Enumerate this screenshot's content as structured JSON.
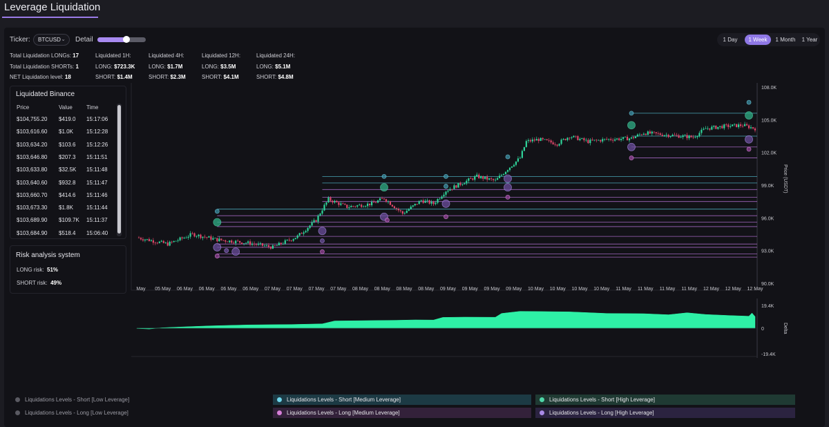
{
  "app": {
    "title": "Leverage Liquidation"
  },
  "controls": {
    "ticker_label": "Ticker:",
    "ticker_value": "BTCUSD",
    "detail_label": "Detail",
    "detail_level": 0.6,
    "ranges": [
      "1 Day",
      "1 Week",
      "1 Month",
      "1 Year"
    ],
    "active_range": "1 Week"
  },
  "stats": {
    "total_longs_label": "Total Liquidation LONGs:",
    "total_longs": "17",
    "total_shorts_label": "Total Liquidation SHORTs:",
    "total_shorts": "1",
    "net_label": "NET Liquidation level:",
    "net": "18",
    "windows": [
      {
        "title": "Liquidated 1H:",
        "long_label": "LONG:",
        "long": "$723.3K",
        "short_label": "SHORT:",
        "short": "$1.4M"
      },
      {
        "title": "Liquidated 4H:",
        "long_label": "LONG:",
        "long": "$1.7M",
        "short_label": "SHORT:",
        "short": "$2.3M"
      },
      {
        "title": "Liquidated 12H:",
        "long_label": "LONG:",
        "long": "$3.5M",
        "short_label": "SHORT:",
        "short": "$4.1M"
      },
      {
        "title": "Liquidated 24H:",
        "long_label": "LONG:",
        "long": "$5.1M",
        "short_label": "SHORT:",
        "short": "$4.8M"
      }
    ]
  },
  "binance": {
    "title": "Liquidated Binance",
    "headers": [
      "Price",
      "Value",
      "Time"
    ],
    "rows": [
      [
        "$104,755.20",
        "$419.0",
        "15:17:06"
      ],
      [
        "$103,616.60",
        "$1.0K",
        "15:12:28"
      ],
      [
        "$103,634.20",
        "$103.6",
        "15:12:26"
      ],
      [
        "$103,646.80",
        "$207.3",
        "15:11:51"
      ],
      [
        "$103,633.80",
        "$32.5K",
        "15:11:48"
      ],
      [
        "$103,640.60",
        "$932.8",
        "15:11:47"
      ],
      [
        "$103,660.70",
        "$414.6",
        "15:11:46"
      ],
      [
        "$103,673.30",
        "$1.8K",
        "15:11:44"
      ],
      [
        "$103,689.90",
        "$109.7K",
        "15:11:37"
      ],
      [
        "$103,684.90",
        "$518.4",
        "15:06:40"
      ]
    ]
  },
  "risk": {
    "title": "Risk analysis system",
    "long_label": "LONG risk:",
    "long": "51%",
    "short_label": "SHORT risk:",
    "short": "49%"
  },
  "legend": [
    {
      "label": "Liquidations Levels - Short [Low Leverage]",
      "color": "#5a5a62",
      "style": "plain"
    },
    {
      "label": "Liquidations Levels - Short [Medium Leverage]",
      "color": "#6fd3e8",
      "style": "pill-teal"
    },
    {
      "label": "Liquidations Levels - Short [High Leverage]",
      "color": "#4fd6a8",
      "style": "pill-green"
    },
    {
      "label": "Liquidations Levels - Long [Low Leverage]",
      "color": "#5a5a62",
      "style": "plain"
    },
    {
      "label": "Liquidations Levels - Long [Medium Leverage]",
      "color": "#d77fd9",
      "style": "pill-pink"
    },
    {
      "label": "Liquidations Levels - Long [High Leverage]",
      "color": "#a98ae6",
      "style": "pill-purple"
    }
  ],
  "colors": {
    "accent": "#9b7be8",
    "up": "#2fd49a",
    "down": "#e0476a",
    "delta": "#2ef0a6",
    "short_line": "#4fb7c9",
    "long_line": "#b06fd0"
  },
  "chart_data": [
    {
      "type": "candlestick",
      "y_label": "Price (USDT)",
      "y_ticks": [
        "108.0K",
        "105.0K",
        "102.0K",
        "99.0K",
        "96.0K",
        "93.0K",
        "90.0K"
      ],
      "ylim": [
        90000,
        108000
      ],
      "x_ticks": [
        "May",
        "05 May",
        "06 May",
        "06 May",
        "06 May",
        "06 May",
        "07 May",
        "07 May",
        "07 May",
        "07 May",
        "08 May",
        "08 May",
        "08 May",
        "08 May",
        "09 May",
        "09 May",
        "09 May",
        "09 May",
        "10 May",
        "10 May",
        "10 May",
        "10 May",
        "11 May",
        "11 May",
        "11 May",
        "11 May",
        "12 May",
        "12 May",
        "12 May"
      ],
      "price_path": [
        [
          0,
          94200
        ],
        [
          0.05,
          93600
        ],
        [
          0.09,
          94500
        ],
        [
          0.13,
          94000
        ],
        [
          0.18,
          93700
        ],
        [
          0.22,
          93300
        ],
        [
          0.26,
          94300
        ],
        [
          0.29,
          95800
        ],
        [
          0.3,
          96800
        ],
        [
          0.31,
          97700
        ],
        [
          0.34,
          97000
        ],
        [
          0.38,
          97300
        ],
        [
          0.4,
          97800
        ],
        [
          0.43,
          96400
        ],
        [
          0.46,
          97600
        ],
        [
          0.48,
          97300
        ],
        [
          0.5,
          98500
        ],
        [
          0.53,
          99300
        ],
        [
          0.55,
          99800
        ],
        [
          0.58,
          99400
        ],
        [
          0.6,
          100500
        ],
        [
          0.62,
          101500
        ],
        [
          0.63,
          103000
        ],
        [
          0.65,
          103200
        ],
        [
          0.68,
          102800
        ],
        [
          0.7,
          103500
        ],
        [
          0.73,
          103000
        ],
        [
          0.76,
          103200
        ],
        [
          0.8,
          103300
        ],
        [
          0.82,
          103800
        ],
        [
          0.86,
          103600
        ],
        [
          0.9,
          103400
        ],
        [
          0.92,
          104200
        ],
        [
          0.95,
          104400
        ],
        [
          0.98,
          104500
        ],
        [
          1.0,
          104200
        ]
      ],
      "level_lines": [
        {
          "price": 105600,
          "from": 0.8,
          "to": 0.99,
          "side": "short"
        },
        {
          "price": 103500,
          "from": 0.8,
          "to": 1.0,
          "side": "short"
        },
        {
          "price": 102500,
          "from": 0.8,
          "to": 1.0,
          "side": "long"
        },
        {
          "price": 101500,
          "from": 0.8,
          "to": 1.0,
          "side": "long"
        },
        {
          "price": 99800,
          "from": 0.3,
          "to": 1.0,
          "side": "short"
        },
        {
          "price": 99200,
          "from": 0.3,
          "to": 1.0,
          "side": "short"
        },
        {
          "price": 98600,
          "from": 0.3,
          "to": 1.0,
          "side": "long"
        },
        {
          "price": 97900,
          "from": 0.3,
          "to": 1.0,
          "side": "long"
        },
        {
          "price": 97500,
          "from": 0.3,
          "to": 1.0,
          "side": "long"
        },
        {
          "price": 96800,
          "from": 0.13,
          "to": 1.0,
          "side": "short"
        },
        {
          "price": 96200,
          "from": 0.13,
          "to": 1.0,
          "side": "long"
        },
        {
          "price": 95600,
          "from": 0.13,
          "to": 1.0,
          "side": "long"
        },
        {
          "price": 95200,
          "from": 0.13,
          "to": 1.0,
          "side": "long"
        },
        {
          "price": 94300,
          "from": 0.13,
          "to": 1.0,
          "side": "long"
        },
        {
          "price": 93600,
          "from": 0.13,
          "to": 1.0,
          "side": "long"
        },
        {
          "price": 93300,
          "from": 0.13,
          "to": 1.0,
          "side": "long"
        },
        {
          "price": 92700,
          "from": 0.13,
          "to": 1.0,
          "side": "long"
        },
        {
          "price": 92400,
          "from": 0.13,
          "to": 1.0,
          "side": "long"
        }
      ],
      "bubbles": [
        {
          "t": 0.13,
          "price": 96600,
          "size": "s",
          "side": "short"
        },
        {
          "t": 0.13,
          "price": 95600,
          "size": "m",
          "side": "short-high"
        },
        {
          "t": 0.13,
          "price": 93300,
          "size": "m",
          "side": "long"
        },
        {
          "t": 0.145,
          "price": 93000,
          "size": "s",
          "side": "long"
        },
        {
          "t": 0.13,
          "price": 92500,
          "size": "s",
          "side": "long-med"
        },
        {
          "t": 0.16,
          "price": 92900,
          "size": "m",
          "side": "long"
        },
        {
          "t": 0.3,
          "price": 94800,
          "size": "m",
          "side": "long"
        },
        {
          "t": 0.3,
          "price": 93900,
          "size": "s",
          "side": "long"
        },
        {
          "t": 0.3,
          "price": 92900,
          "size": "s",
          "side": "long-med"
        },
        {
          "t": 0.4,
          "price": 99800,
          "size": "s",
          "side": "short"
        },
        {
          "t": 0.4,
          "price": 98800,
          "size": "m",
          "side": "short-high"
        },
        {
          "t": 0.4,
          "price": 96100,
          "size": "m",
          "side": "long"
        },
        {
          "t": 0.405,
          "price": 95800,
          "size": "s",
          "side": "long-med"
        },
        {
          "t": 0.5,
          "price": 99800,
          "size": "s",
          "side": "short"
        },
        {
          "t": 0.5,
          "price": 98900,
          "size": "s",
          "side": "short"
        },
        {
          "t": 0.5,
          "price": 97300,
          "size": "m",
          "side": "long"
        },
        {
          "t": 0.5,
          "price": 96100,
          "size": "s",
          "side": "long-med"
        },
        {
          "t": 0.6,
          "price": 101600,
          "size": "s",
          "side": "short"
        },
        {
          "t": 0.6,
          "price": 99600,
          "size": "m",
          "side": "long"
        },
        {
          "t": 0.6,
          "price": 98800,
          "size": "m",
          "side": "long"
        },
        {
          "t": 0.6,
          "price": 97900,
          "size": "s",
          "side": "long-med"
        },
        {
          "t": 0.8,
          "price": 105600,
          "size": "s",
          "side": "short"
        },
        {
          "t": 0.8,
          "price": 104500,
          "size": "m",
          "side": "short-high"
        },
        {
          "t": 0.8,
          "price": 102500,
          "size": "m",
          "side": "long"
        },
        {
          "t": 0.8,
          "price": 101500,
          "size": "s",
          "side": "long-med"
        },
        {
          "t": 0.99,
          "price": 106600,
          "size": "s",
          "side": "short"
        },
        {
          "t": 0.99,
          "price": 105400,
          "size": "m",
          "side": "short-high"
        },
        {
          "t": 0.99,
          "price": 103200,
          "size": "m",
          "side": "long"
        },
        {
          "t": 0.99,
          "price": 102300,
          "size": "s",
          "side": "long-med"
        }
      ]
    },
    {
      "type": "area",
      "y_label": "Delta",
      "y_ticks": [
        "19.4K",
        "0",
        "-19.4K"
      ],
      "ylim": [
        -19400,
        19400
      ],
      "path": [
        [
          0,
          -200
        ],
        [
          0.02,
          -600
        ],
        [
          0.04,
          300
        ],
        [
          0.07,
          900
        ],
        [
          0.12,
          1800
        ],
        [
          0.18,
          2500
        ],
        [
          0.25,
          2800
        ],
        [
          0.3,
          3300
        ],
        [
          0.32,
          5500
        ],
        [
          0.42,
          6000
        ],
        [
          0.45,
          6300
        ],
        [
          0.48,
          6200
        ],
        [
          0.495,
          8200
        ],
        [
          0.53,
          8400
        ],
        [
          0.58,
          8300
        ],
        [
          0.59,
          11200
        ],
        [
          0.62,
          12800
        ],
        [
          0.7,
          12400
        ],
        [
          0.76,
          11200
        ],
        [
          0.82,
          11000
        ],
        [
          0.86,
          10200
        ],
        [
          0.89,
          11700
        ],
        [
          0.92,
          10400
        ],
        [
          0.96,
          9600
        ],
        [
          0.99,
          9100
        ],
        [
          0.995,
          11500
        ],
        [
          1.0,
          8800
        ]
      ]
    }
  ]
}
